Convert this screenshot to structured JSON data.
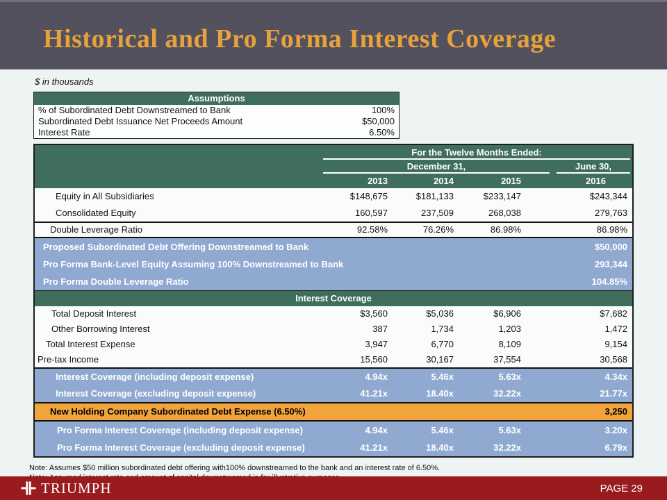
{
  "slide": {
    "title": "Historical and Pro Forma Interest Coverage",
    "subtitle_note": "$ in thousands",
    "brand": "TRIUMPH",
    "page_label": "PAGE 29"
  },
  "colors": {
    "title_band_bg": "#53515D",
    "title_gold": "#E8A23C",
    "table_green": "#3F6E5C",
    "highlight_blue": "#8FA9D0",
    "highlight_orange": "#F2A43C",
    "footer_red": "#9A1B1E",
    "body_bg": "#EEF4F3"
  },
  "assumptions": {
    "header": "Assumptions",
    "rows": [
      {
        "label": "% of Subordinated Debt Downstreamed to Bank",
        "value": "100%"
      },
      {
        "label": "Subordinated Debt Issuance Net Proceeds Amount",
        "value": "$50,000"
      },
      {
        "label": "Interest Rate",
        "value": "6.50%"
      }
    ]
  },
  "main_table": {
    "period_header": "For the Twelve Months Ended:",
    "period_groups": [
      {
        "label": "December 31,",
        "span": 3
      },
      {
        "label": "June 30,",
        "span": 1
      }
    ],
    "years": [
      "2013",
      "2014",
      "2015",
      "2016"
    ],
    "sections": [
      {
        "key": "historical",
        "style": "white",
        "rows": [
          {
            "label": "Equity in All Subsidiaries",
            "indent": 30,
            "values": [
              "$148,675",
              "$181,133",
              "$233,147",
              "$243,344"
            ]
          },
          {
            "label": "Consolidated Equity",
            "indent": 30,
            "values": [
              "160,597",
              "237,509",
              "268,038",
              "279,763"
            ]
          }
        ]
      },
      {
        "key": "ratio",
        "style": "white",
        "rows": [
          {
            "label": "Double Leverage Ratio",
            "indent": 22,
            "values": [
              "92.58%",
              "76.26%",
              "86.98%",
              "86.98%"
            ]
          }
        ]
      },
      {
        "key": "proforma_equity",
        "style": "blue",
        "rows": [
          {
            "label": "Proposed Subordinated Debt Offering Downstreamed to Bank",
            "indent": 12,
            "values": [
              "",
              "",
              "",
              "$50,000"
            ]
          },
          {
            "label": "Pro Forma Bank-Level Equity Assuming 100% Downstreamed to Bank",
            "indent": 12,
            "values": [
              "",
              "",
              "",
              "293,344"
            ]
          },
          {
            "label": "Pro Forma Double Leverage Ratio",
            "indent": 12,
            "values": [
              "",
              "",
              "",
              "104.85%"
            ]
          }
        ]
      },
      {
        "key": "interest_coverage_header",
        "style": "subheader",
        "label": "Interest Coverage"
      },
      {
        "key": "interest_detail",
        "style": "white",
        "rows": [
          {
            "label": "Total Deposit Interest",
            "indent": 24,
            "values": [
              "$3,560",
              "$5,036",
              "$6,906",
              "$7,682"
            ]
          },
          {
            "label": "Other Borrowing Interest",
            "indent": 24,
            "values": [
              "387",
              "1,734",
              "1,203",
              "1,472"
            ]
          },
          {
            "label": "Total Interest Expense",
            "indent": 16,
            "values": [
              "3,947",
              "6,770",
              "8,109",
              "9,154"
            ]
          },
          {
            "label": "Pre-tax Income",
            "indent": 4,
            "values": [
              "15,560",
              "30,167",
              "37,554",
              "30,568"
            ]
          }
        ]
      },
      {
        "key": "coverage",
        "style": "blue",
        "rows": [
          {
            "label": "Interest Coverage (including deposit expense)",
            "indent": 30,
            "values": [
              "4.94x",
              "5.46x",
              "5.63x",
              "4.34x"
            ]
          },
          {
            "label": "Interest Coverage (excluding deposit expense)",
            "indent": 30,
            "values": [
              "41.21x",
              "18.40x",
              "32.22x",
              "21.77x"
            ]
          }
        ]
      },
      {
        "key": "new_debt",
        "style": "orange",
        "rows": [
          {
            "label": "New Holding Company Subordinated Debt Expense (6.50%)",
            "indent": 22,
            "values": [
              "",
              "",
              "",
              "3,250"
            ]
          }
        ]
      },
      {
        "key": "proforma_coverage",
        "style": "blue",
        "rows": [
          {
            "label": "Pro Forma Interest Coverage (including deposit expense)",
            "indent": 32,
            "values": [
              "4.94x",
              "5.46x",
              "5.63x",
              "3.20x"
            ]
          },
          {
            "label": "Pro Forma Interest Coverage (excluding deposit expense)",
            "indent": 32,
            "values": [
              "41.21x",
              "18.40x",
              "32.22x",
              "6.79x"
            ]
          }
        ]
      }
    ]
  },
  "notes": [
    "Note: Assumes $50 million subordinated debt offering with100% downstreamed to the bank and an interest rate of 6.50%.",
    "Note: Assumed interest rate and amount of capital downstreamed is for illustrative purposes."
  ]
}
